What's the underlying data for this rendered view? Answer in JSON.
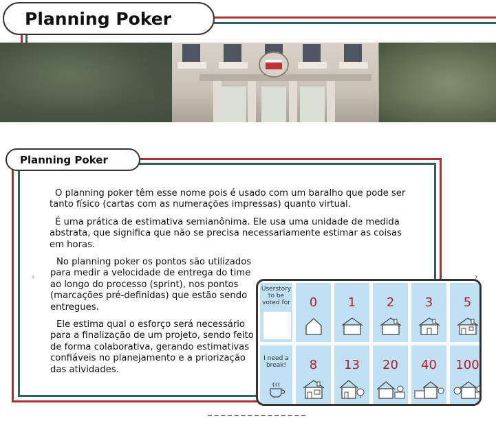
{
  "header": {
    "title": "Planning Poker"
  },
  "section": {
    "title": "Planning Poker",
    "paragraphs": [
      "O planning poker têm esse nome pois é usado com um baralho que pode ser tanto físico (cartas com as numerações impressas) quanto virtual.",
      "É uma prática de estimativa semianônima. Ele usa uma unidade de medida abstrata, que significa que não se precisa necessariamente estimar as coisas em horas.",
      "No planning poker os pontos são utilizados para medir a velocidade de entrega do time ao longo do processo (sprint), nos pontos (marcações pré-definidas) que estão sendo entregues.",
      "Ele estima qual o esforço será necessário para a finalização de um projeto, sendo feito de forma colaborativa, gerando estimativas confiáveis no planejamento e a priorização das atividades."
    ]
  },
  "carousel": {
    "prev_label": "‹",
    "next_label": "›"
  },
  "board": {
    "userstory_label": "Userstory to be voted for",
    "break_label": "I need a break!",
    "cards_top": [
      "0",
      "1",
      "2",
      "3",
      "5"
    ],
    "cards_bottom": [
      "8",
      "13",
      "20",
      "40",
      "100"
    ]
  },
  "colors": {
    "accent_red": "#a83232",
    "accent_teal": "#2f5f5f",
    "card_bg": "#bfe1f3",
    "card_number": "#b31c2b"
  }
}
